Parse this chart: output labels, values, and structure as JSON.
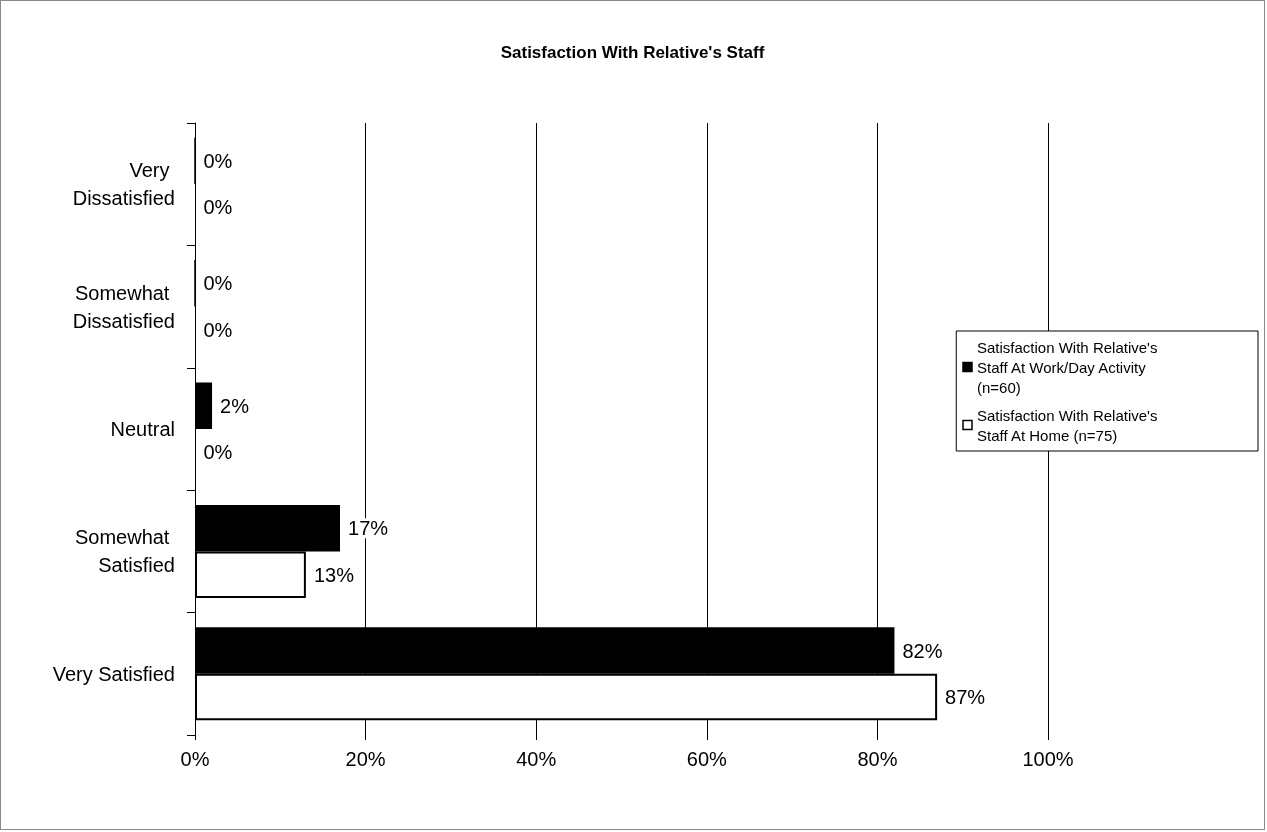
{
  "chart_data": {
    "type": "bar",
    "title": "Satisfaction With Relative's Staff",
    "orientation": "horizontal",
    "categories": [
      "Very Dissatisfied",
      "Somewhat Dissatisfied",
      "Neutral",
      "Somewhat Satisfied",
      "Very Satisfied"
    ],
    "series": [
      {
        "name": "Satisfaction With Relative's Staff At Work/Day Activity (n=60)",
        "color": "#000000",
        "values": [
          0,
          0,
          2,
          17,
          82
        ],
        "value_labels": [
          "0%",
          "0%",
          "2%",
          "17%",
          "82%"
        ]
      },
      {
        "name": "Satisfaction With Relative's Staff At Home (n=75)",
        "color": "#ffffff",
        "values": [
          0,
          0,
          0,
          13,
          87
        ],
        "value_labels": [
          "0%",
          "0%",
          "0%",
          "13%",
          "87%"
        ]
      }
    ],
    "xlim": [
      0,
      100
    ],
    "xticks": [
      {
        "value": 0,
        "label": "0%"
      },
      {
        "value": 20,
        "label": "20%"
      },
      {
        "value": 40,
        "label": "40%"
      },
      {
        "value": 60,
        "label": "60%"
      },
      {
        "value": 80,
        "label": "80%"
      },
      {
        "value": 100,
        "label": "100%"
      }
    ],
    "grid": "x",
    "legend": "right"
  }
}
